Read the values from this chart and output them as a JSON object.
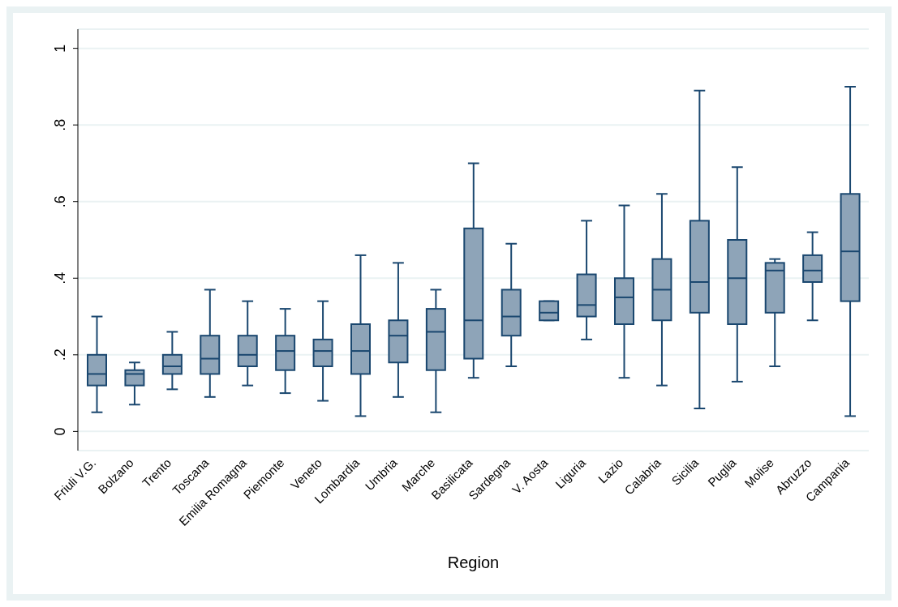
{
  "chart_data": {
    "type": "box",
    "xlabel": "Region",
    "color": "#8ea4b8",
    "categories": [
      "Friuli V.G.",
      "Bolzano",
      "Trento",
      "Toscana",
      "Emilia Romagna",
      "Piemonte",
      "Veneto",
      "Lombardia",
      "Umbria",
      "Marche",
      "Basilicata",
      "Sardegna",
      "V. Aosta",
      "Liguria",
      "Lazio",
      "Calabria",
      "Sicilia",
      "Puglia",
      "Molise",
      "Abruzzo",
      "Campania"
    ],
    "boxes": [
      {
        "low": 0.05,
        "q1": 0.12,
        "median": 0.15,
        "q3": 0.2,
        "high": 0.3
      },
      {
        "low": 0.07,
        "q1": 0.12,
        "median": 0.15,
        "q3": 0.16,
        "high": 0.18
      },
      {
        "low": 0.11,
        "q1": 0.15,
        "median": 0.17,
        "q3": 0.2,
        "high": 0.26
      },
      {
        "low": 0.09,
        "q1": 0.15,
        "median": 0.19,
        "q3": 0.25,
        "high": 0.37
      },
      {
        "low": 0.12,
        "q1": 0.17,
        "median": 0.2,
        "q3": 0.25,
        "high": 0.34
      },
      {
        "low": 0.1,
        "q1": 0.16,
        "median": 0.21,
        "q3": 0.25,
        "high": 0.32
      },
      {
        "low": 0.08,
        "q1": 0.17,
        "median": 0.21,
        "q3": 0.24,
        "high": 0.34
      },
      {
        "low": 0.04,
        "q1": 0.15,
        "median": 0.21,
        "q3": 0.28,
        "high": 0.46
      },
      {
        "low": 0.09,
        "q1": 0.18,
        "median": 0.25,
        "q3": 0.29,
        "high": 0.44
      },
      {
        "low": 0.05,
        "q1": 0.16,
        "median": 0.26,
        "q3": 0.32,
        "high": 0.37
      },
      {
        "low": 0.14,
        "q1": 0.19,
        "median": 0.29,
        "q3": 0.53,
        "high": 0.7
      },
      {
        "low": 0.17,
        "q1": 0.25,
        "median": 0.3,
        "q3": 0.37,
        "high": 0.49
      },
      {
        "low": 0.29,
        "q1": 0.29,
        "median": 0.31,
        "q3": 0.34,
        "high": 0.34
      },
      {
        "low": 0.24,
        "q1": 0.3,
        "median": 0.33,
        "q3": 0.41,
        "high": 0.55
      },
      {
        "low": 0.14,
        "q1": 0.28,
        "median": 0.35,
        "q3": 0.4,
        "high": 0.59
      },
      {
        "low": 0.12,
        "q1": 0.29,
        "median": 0.37,
        "q3": 0.45,
        "high": 0.62
      },
      {
        "low": 0.06,
        "q1": 0.31,
        "median": 0.39,
        "q3": 0.55,
        "high": 0.89
      },
      {
        "low": 0.13,
        "q1": 0.28,
        "median": 0.4,
        "q3": 0.5,
        "high": 0.69
      },
      {
        "low": 0.17,
        "q1": 0.31,
        "median": 0.42,
        "q3": 0.44,
        "high": 0.45
      },
      {
        "low": 0.29,
        "q1": 0.39,
        "median": 0.42,
        "q3": 0.46,
        "high": 0.52
      },
      {
        "low": 0.04,
        "q1": 0.34,
        "median": 0.47,
        "q3": 0.62,
        "high": 0.9
      }
    ],
    "ylim": [
      -0.05,
      1.05
    ],
    "yticks": [
      {
        "value": 0,
        "label": "0"
      },
      {
        "value": 0.2,
        "label": ".2"
      },
      {
        "value": 0.4,
        "label": ".4"
      },
      {
        "value": 0.6,
        "label": ".6"
      },
      {
        "value": 0.8,
        "label": ".8"
      },
      {
        "value": 1,
        "label": "1"
      }
    ],
    "grid": "y"
  }
}
